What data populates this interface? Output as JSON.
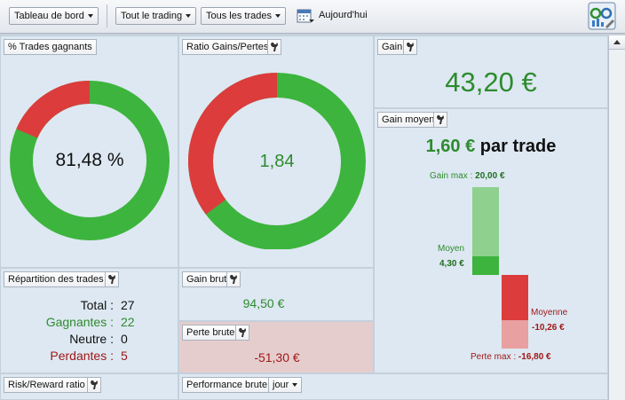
{
  "toolbar": {
    "dashboard_label": "Tableau de bord",
    "trading_label": "Tout le trading",
    "trades_label": "Tous les trades",
    "today_label": "Aujourd'hui"
  },
  "win_rate": {
    "title": "% Trades gagnants",
    "value_text": "81,48 %",
    "fraction": 0.8148,
    "colors": {
      "win": "#3db43d",
      "loss": "#dc3c3c"
    }
  },
  "gain_loss_ratio": {
    "title": "Ratio Gains/Pertes",
    "value_text": "1,84",
    "win_fraction": 0.648,
    "colors": {
      "win": "#3db43d",
      "loss": "#dc3c3c"
    }
  },
  "gain": {
    "title": "Gain",
    "value": "43,20 €"
  },
  "avg_gain": {
    "title": "Gain moyen",
    "value": "1,60 €",
    "per_trade": "par trade",
    "max_gain_label": "Gain max :",
    "max_gain_value": "20,00 €",
    "avg_label": "Moyen",
    "avg_value": "4,30 €",
    "avg_loss_label": "Moyenne",
    "avg_loss_value": "-10,26 €",
    "max_loss_label": "Perte max :",
    "max_loss_value": "-16,80 €",
    "bar_values": {
      "max_gain": 20.0,
      "avg_gain": 4.3,
      "avg_loss": -10.26,
      "max_loss": -16.8
    }
  },
  "distribution": {
    "title": "Répartition des trades",
    "rows": [
      {
        "label": "Total :",
        "value": "27",
        "tone": "neutral"
      },
      {
        "label": "Gagnantes :",
        "value": "22",
        "tone": "green"
      },
      {
        "label": "Neutre :",
        "value": "0",
        "tone": "neutral"
      },
      {
        "label": "Perdantes :",
        "value": "5",
        "tone": "red"
      }
    ]
  },
  "gross_gain": {
    "title": "Gain brut",
    "value": "94,50 €"
  },
  "gross_loss": {
    "title": "Perte brute",
    "value": "-51,30 €"
  },
  "risk_reward": {
    "title": "Risk/Reward ratio"
  },
  "gross_performance": {
    "title": "Performance brute",
    "period": "jour"
  }
}
